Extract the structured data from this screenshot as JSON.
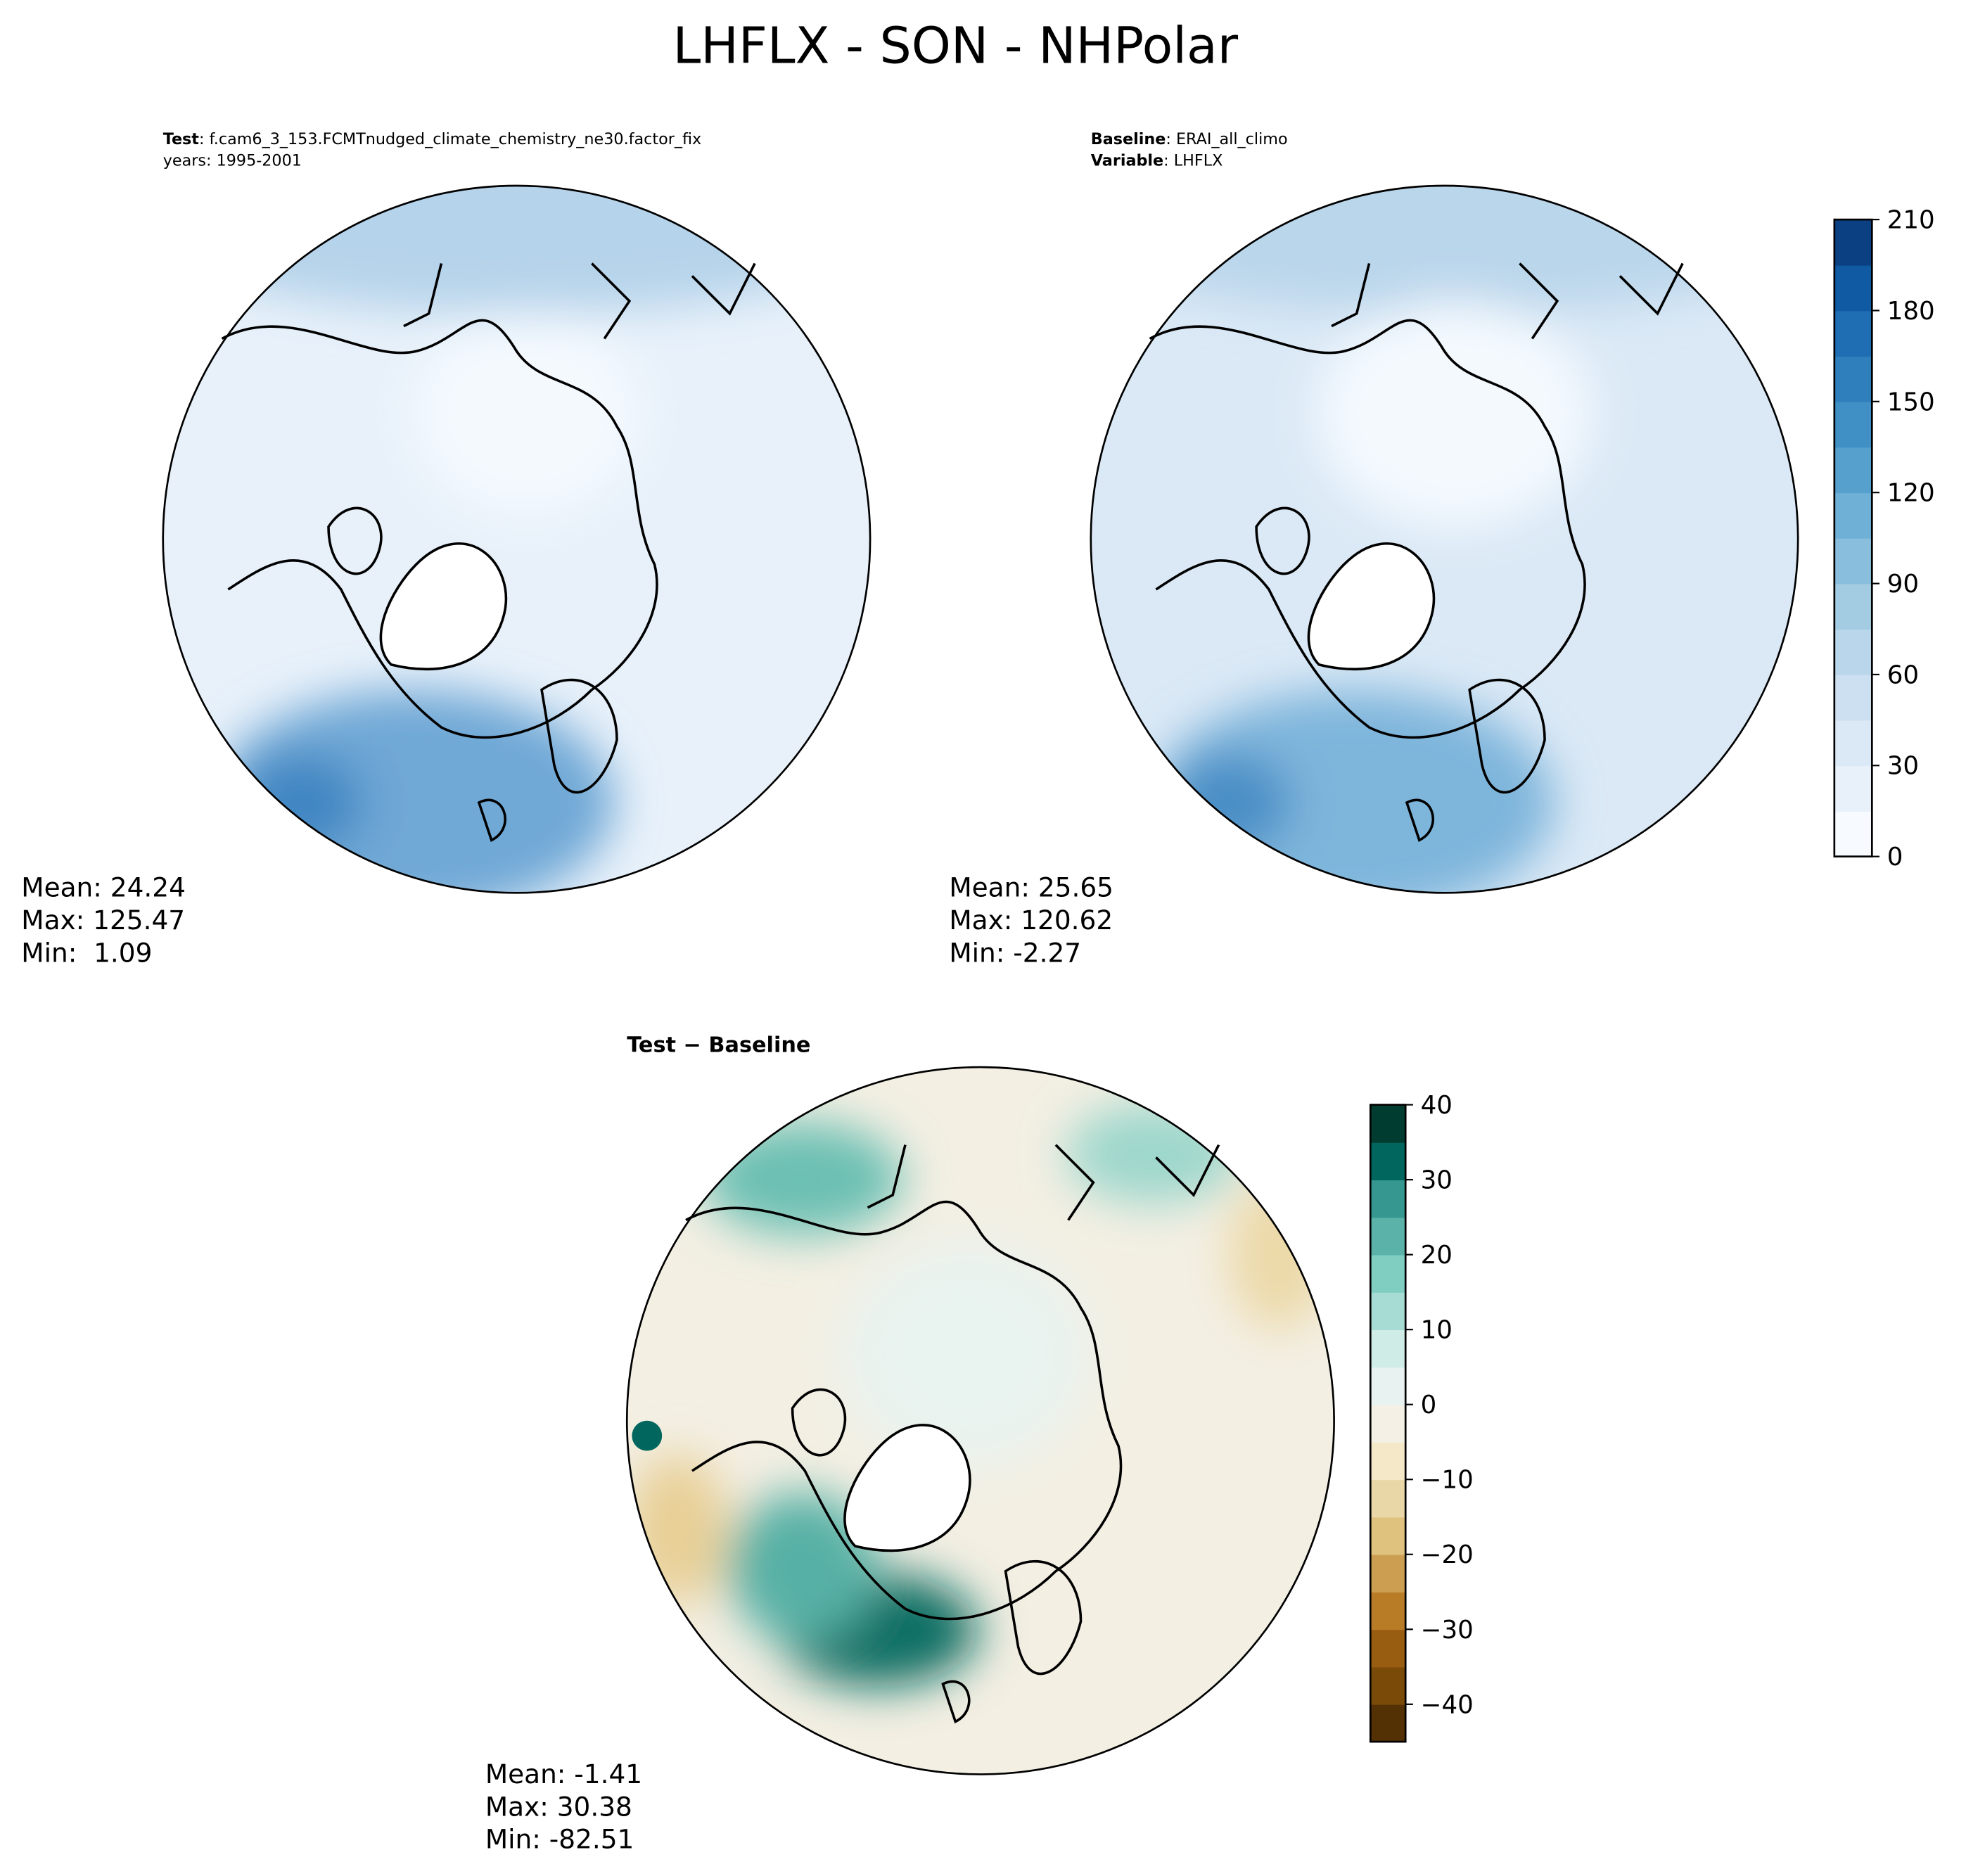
{
  "title": "LHFLX - SON - NHPolar",
  "panels": [
    {
      "label_key": "Test",
      "label_value": ": f.cam6_3_153.FCMTnudged_climate_chemistry_ne30.factor_fix",
      "line2": "years: 1995-2001",
      "stats": [
        "Mean: 24.24",
        "Max: 125.47",
        "Min:  1.09"
      ]
    },
    {
      "label_key": "Baseline",
      "label_value": ": ERAI_all_climo",
      "line2_key": "Variable",
      "line2_value": ": LHFLX",
      "stats": [
        "Mean: 25.65",
        "Max: 120.62",
        "Min: -2.27"
      ]
    },
    {
      "label_key": "Test − Baseline",
      "stats": [
        "Mean: -1.41",
        "Max: 30.38",
        "Min: -82.51"
      ]
    }
  ],
  "colorbars": [
    {
      "lim": [
        0,
        210
      ],
      "ticks": [
        0,
        30,
        60,
        90,
        120,
        150,
        180,
        210
      ],
      "colors": [
        "#f7fbff",
        "#e8f1fa",
        "#dbe9f6",
        "#cde0f1",
        "#bad6eb",
        "#a3cce3",
        "#89bedc",
        "#6fb0d7",
        "#56a0ce",
        "#4090c5",
        "#2f7fbc",
        "#1f6eb3",
        "#0f5aa3",
        "#0b4083"
      ]
    },
    {
      "lim": [
        -45,
        40
      ],
      "ticks": [
        {
          "value": -40,
          "label": "−40"
        },
        {
          "value": -30,
          "label": "−30"
        },
        {
          "value": -20,
          "label": "−20"
        },
        {
          "value": -10,
          "label": "−10"
        },
        0,
        10,
        20,
        30,
        40
      ],
      "colors": [
        "#543005",
        "#7a4a09",
        "#995d12",
        "#b87c27",
        "#cc9e52",
        "#dfc27d",
        "#e9d7a7",
        "#f5e8c8",
        "#f5f0e6",
        "#e8f3f1",
        "#d0ece7",
        "#a6dcd3",
        "#80cdc1",
        "#5bb2a8",
        "#35978f",
        "#01665e",
        "#003c30"
      ]
    }
  ]
}
